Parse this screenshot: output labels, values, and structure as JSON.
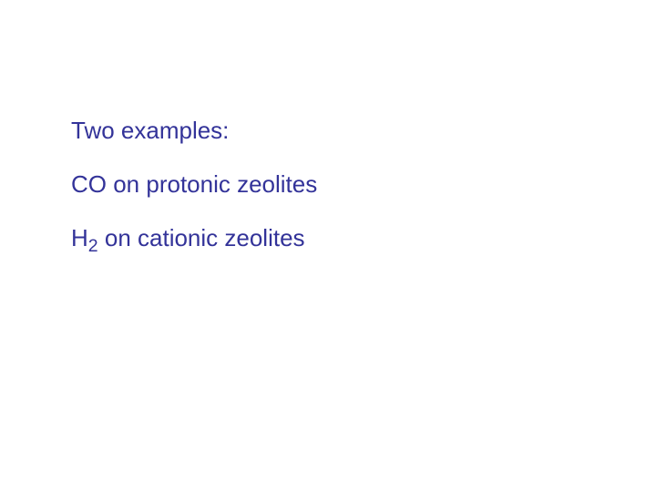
{
  "slide": {
    "text_color": "#333399",
    "background_color": "#ffffff",
    "font_size": 26,
    "lines": {
      "line1": "Two examples:",
      "line2": "CO on protonic zeolites",
      "line3_pre": "H",
      "line3_sub": "2",
      "line3_post": " on cationic zeolites"
    }
  }
}
